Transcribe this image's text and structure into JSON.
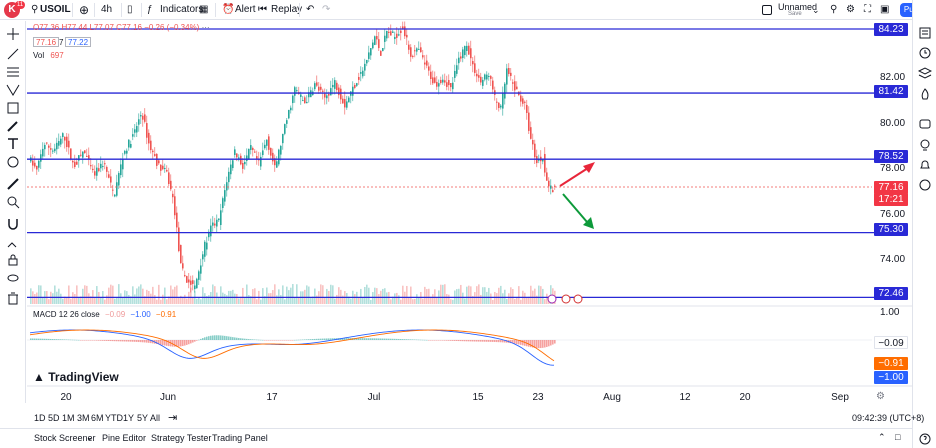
{
  "toolbar": {
    "avatar_letter": "K",
    "avatar_badge": "11",
    "symbol": "USOIL",
    "interval": "4h",
    "indicators_label": "Indicators",
    "alert_label": "Alert",
    "replay_label": "Replay",
    "layout_name": "Unnamed",
    "layout_status": "Save",
    "publish_label": "Publish"
  },
  "legend": {
    "ohlc": "O77.36 H77.44 L77.07 C77.16 −0.26 (−0.34%)",
    "bid": "77.16",
    "spread": "7",
    "ask": "77.22",
    "vol_label": "Vol",
    "vol_value": "697"
  },
  "macd": {
    "label": "MACD 12 26 close",
    "v1": "−0.09",
    "v2": "−1.00",
    "v3": "−0.91",
    "scale_top": "1.00",
    "tag_hist": "−0.09",
    "tag_signal": "−0.91",
    "tag_macd": "−1.00"
  },
  "price_axis": {
    "ticks": [
      "82.00",
      "80.00",
      "78.00",
      "76.00",
      "74.00"
    ],
    "levels": [
      "84.23",
      "81.42",
      "78.52",
      "75.30",
      "72.46"
    ],
    "current_price": "77.16",
    "countdown": "17:21"
  },
  "time_axis": [
    "20",
    "Jun",
    "17",
    "Jul",
    "15",
    "23",
    "Aug",
    "12",
    "20",
    "Sep"
  ],
  "watermark": "TradingView",
  "ranges": [
    "1D",
    "5D",
    "1M",
    "3M",
    "6M",
    "YTD",
    "1Y",
    "5Y",
    "All"
  ],
  "clock": "09:42:39 (UTC+8)",
  "bottom_tabs": [
    "Stock Screener",
    "Pine Editor",
    "Strategy Tester",
    "Trading Panel"
  ],
  "colors": {
    "up": "#26a69a",
    "down": "#ef5350",
    "level_line": "#2929d6",
    "accent": "#2962ff",
    "arrow_up": "#e8263a",
    "arrow_down": "#0d9a3a"
  }
}
